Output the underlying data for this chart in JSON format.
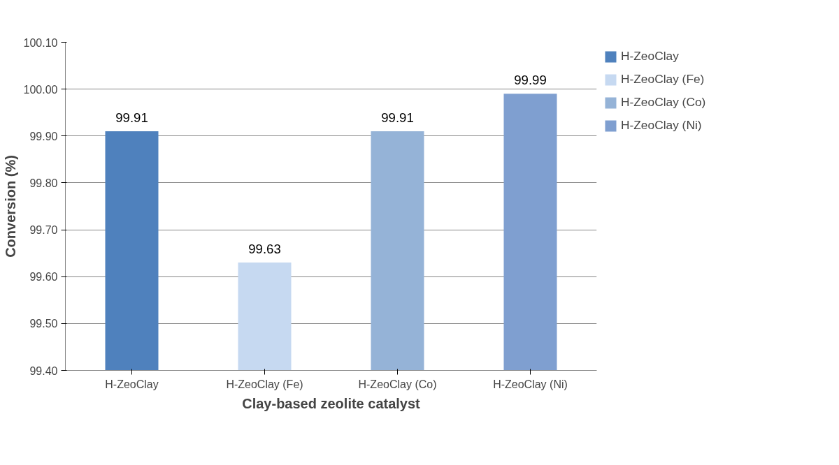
{
  "chart_data": {
    "type": "bar",
    "xlabel": "Clay-based zeolite catalyst",
    "ylabel": "Conversion (%)",
    "categories": [
      "H-ZeoClay",
      "H-ZeoClay (Fe)",
      "H-ZeoClay (Co)",
      "H-ZeoClay (Ni)"
    ],
    "series": [
      {
        "name": "H-ZeoClay",
        "color": "#4f81bd",
        "values": [
          99.91,
          null,
          null,
          null
        ]
      },
      {
        "name": "H-ZeoClay (Fe)",
        "color": "#c6d9f1",
        "values": [
          null,
          99.63,
          null,
          null
        ]
      },
      {
        "name": "H-ZeoClay (Co)",
        "color": "#95b3d7",
        "values": [
          null,
          null,
          99.91,
          null
        ]
      },
      {
        "name": "H-ZeoClay (Ni)",
        "color": "#7f9fd0",
        "values": [
          null,
          null,
          null,
          99.99
        ]
      }
    ],
    "ylim": [
      99.4,
      100.1
    ],
    "yticks": [
      {
        "value": 99.4,
        "label": "99.40"
      },
      {
        "value": 99.5,
        "label": "99.50"
      },
      {
        "value": 99.6,
        "label": "99.60"
      },
      {
        "value": 99.7,
        "label": "99.70"
      },
      {
        "value": 99.8,
        "label": "99.80"
      },
      {
        "value": 99.9,
        "label": "99.90"
      },
      {
        "value": 100.0,
        "label": "100.00"
      },
      {
        "value": 100.1,
        "label": "100.10"
      }
    ],
    "grid": "y",
    "legend": "top right",
    "data_labels": true
  }
}
